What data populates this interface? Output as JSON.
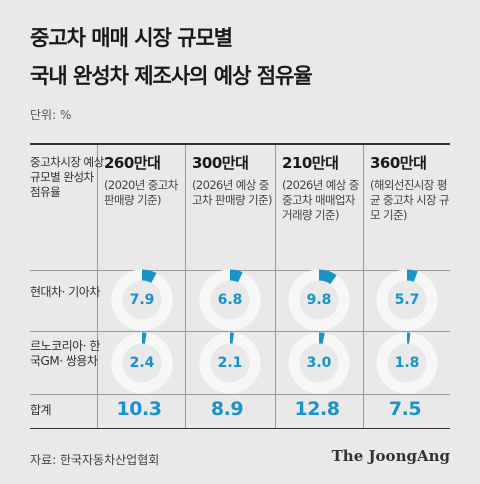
{
  "title": {
    "line1": "중고차 매매 시장 규모별",
    "line2": "국내 완성차 제조사의 예상 점유율"
  },
  "unit_label": "단위: %",
  "corner_label": "중고차시장 예상 규모별 완성차 점유율",
  "footer": {
    "source": "자료: 한국자동차산업협회",
    "logo": "The JoongAng"
  },
  "colors": {
    "accent": "#1a93c9",
    "ring": "#f7f7f7",
    "background": "#e9e9e9"
  },
  "chart_data": {
    "type": "table",
    "columns": [
      {
        "label": "260만대",
        "note": "(2020년 중고차 판매량 기준)"
      },
      {
        "label": "300만대",
        "note": "(2026년 예상 중고차 판매량 기준)"
      },
      {
        "label": "210만대",
        "note": "(2026년 예상 중중고차 매매업자 거래량 기준)"
      },
      {
        "label": "360만대",
        "note": "(해외선진시장 평균 중고차 시장 규모 기준)"
      }
    ],
    "rows": [
      {
        "label": "현대차· 기아차",
        "values": [
          7.9,
          6.8,
          9.8,
          5.7
        ],
        "display": [
          "7.9",
          "6.8",
          "9.8",
          "5.7"
        ]
      },
      {
        "label": "르노코리아· 한국GM· 쌍용차",
        "values": [
          2.4,
          2.1,
          3.0,
          1.8
        ],
        "display": [
          "2.4",
          "2.1",
          "3.0",
          "1.8"
        ]
      }
    ],
    "totals_label": "합계",
    "totals": [
      "10.3",
      "8.9",
      "12.8",
      "7.5"
    ],
    "scale_max": 100
  }
}
